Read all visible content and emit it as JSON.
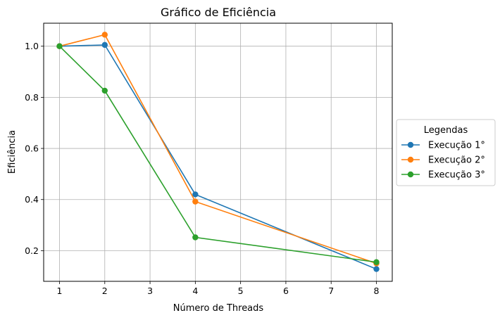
{
  "chart_data": {
    "type": "line",
    "title": "Gráfico de Eficiência",
    "xlabel": "Número de Threads",
    "ylabel": "Eficiência",
    "x": [
      1,
      2,
      4,
      8
    ],
    "xlim": [
      0.65,
      8.35
    ],
    "ylim": [
      0.08,
      1.09
    ],
    "xticks": [
      1,
      2,
      3,
      4,
      5,
      6,
      7,
      8
    ],
    "yticks": [
      0.2,
      0.4,
      0.6,
      0.8,
      1.0
    ],
    "ytick_labels": [
      "0.2",
      "0.4",
      "0.6",
      "0.8",
      "1.0"
    ],
    "grid": true,
    "legend": {
      "title": "Legendas",
      "placement": "outside-right"
    },
    "series": [
      {
        "name": "Execução 1°",
        "color": "#1f77b4",
        "values": [
          1.0,
          1.005,
          0.42,
          0.128
        ]
      },
      {
        "name": "Execução 2°",
        "color": "#ff7f0e",
        "values": [
          1.0,
          1.045,
          0.392,
          0.15
        ]
      },
      {
        "name": "Execução 3°",
        "color": "#2ca02c",
        "values": [
          1.0,
          0.826,
          0.252,
          0.155
        ]
      }
    ]
  }
}
